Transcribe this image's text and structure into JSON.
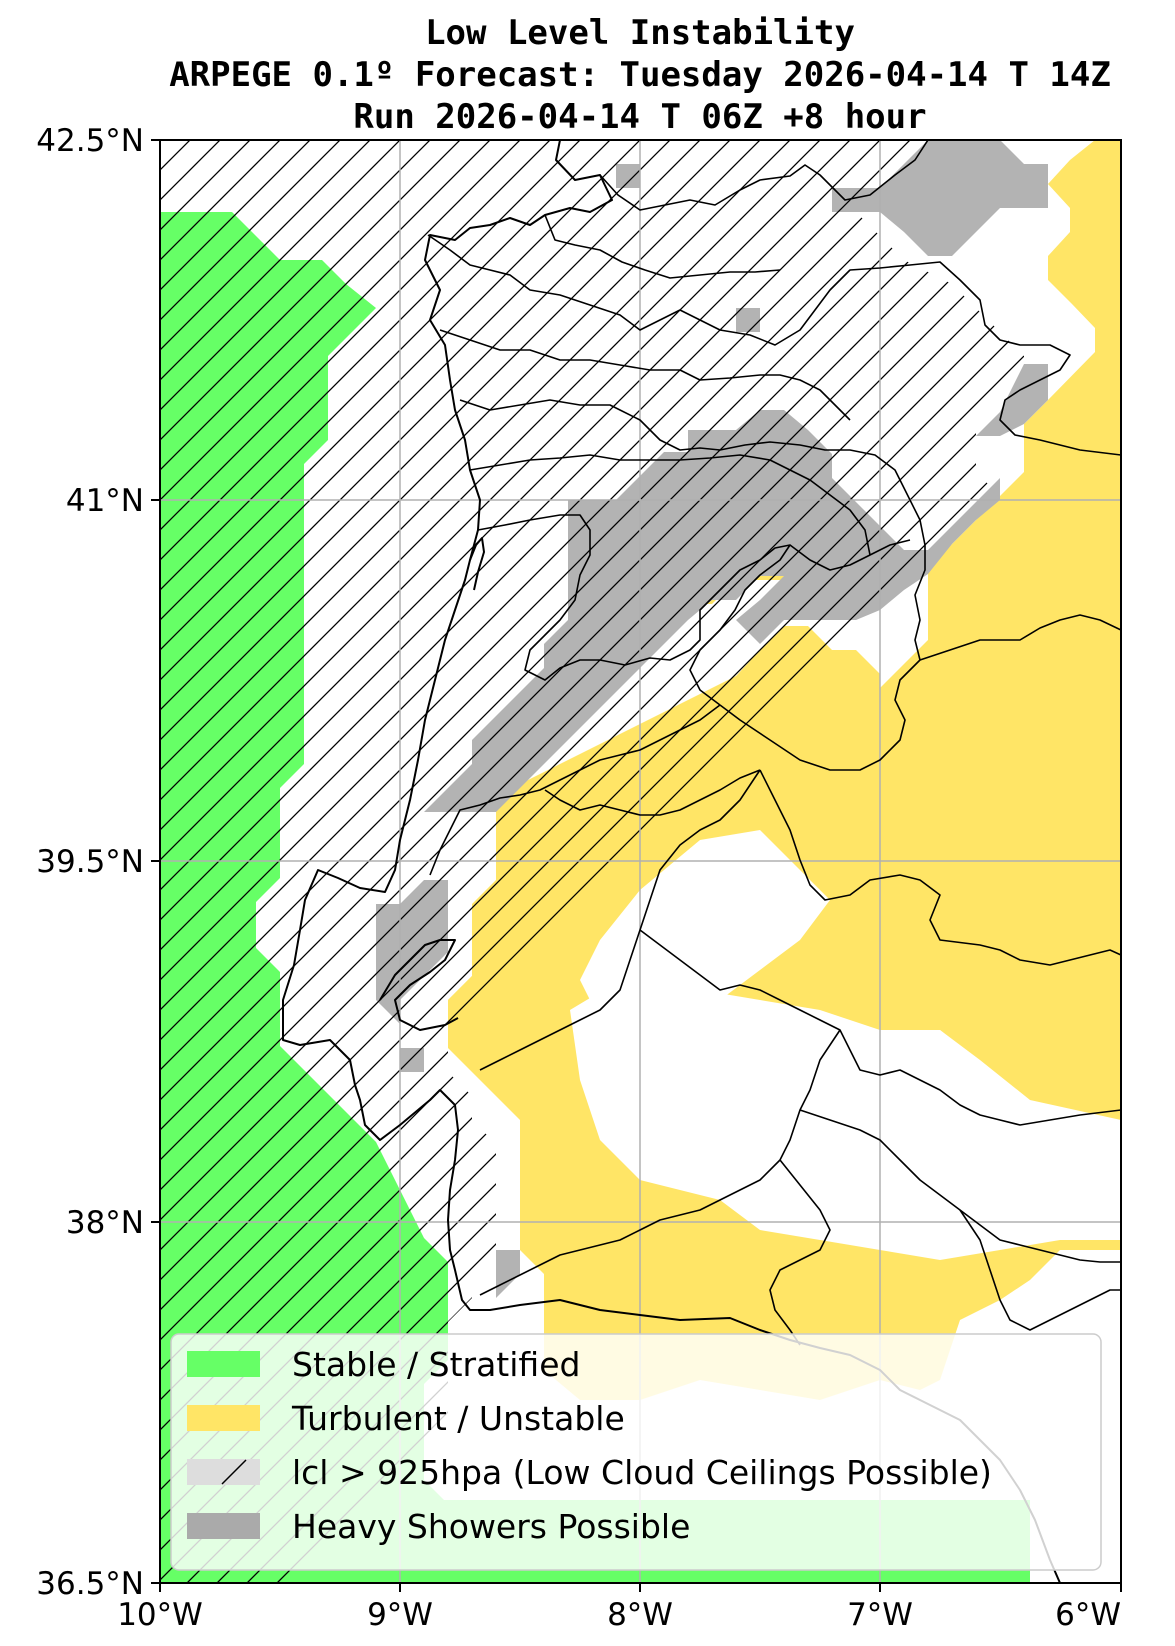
{
  "title": {
    "line1": "Low Level Instability",
    "line2": "ARPEGE 0.1º Forecast: Tuesday 2026-04-14 T 14Z",
    "line3": "Run 2026-04-14 T 06Z +8 hour"
  },
  "axes": {
    "lon_ticks": [
      "10°W",
      "9°W",
      "8°W",
      "7°W",
      "6°W"
    ],
    "lat_ticks": [
      "42.5°N",
      "41°N",
      "39.5°N",
      "38°N",
      "36.5°N"
    ],
    "lon_range": [
      -10,
      -6
    ],
    "lat_range": [
      36.5,
      42.5
    ],
    "grid": true
  },
  "legend": {
    "placement": "lower-left",
    "items": [
      {
        "label": "Stable / Stratified",
        "color": "#66ff66",
        "style": "fill"
      },
      {
        "label": "Turbulent / Unstable",
        "color": "#ffe566",
        "style": "fill"
      },
      {
        "label": "lcl > 925hpa (Low Cloud Ceilings Possible)",
        "color": "#dddddd",
        "style": "hatch"
      },
      {
        "label": "Heavy Showers Possible",
        "color": "#aaaaaa",
        "style": "fill"
      }
    ]
  },
  "colors": {
    "stable": "#66ff66",
    "turbulent": "#ffe566",
    "showers": "#b3b3b3",
    "hatch": "#000000",
    "grid": "#b0b0b0"
  }
}
